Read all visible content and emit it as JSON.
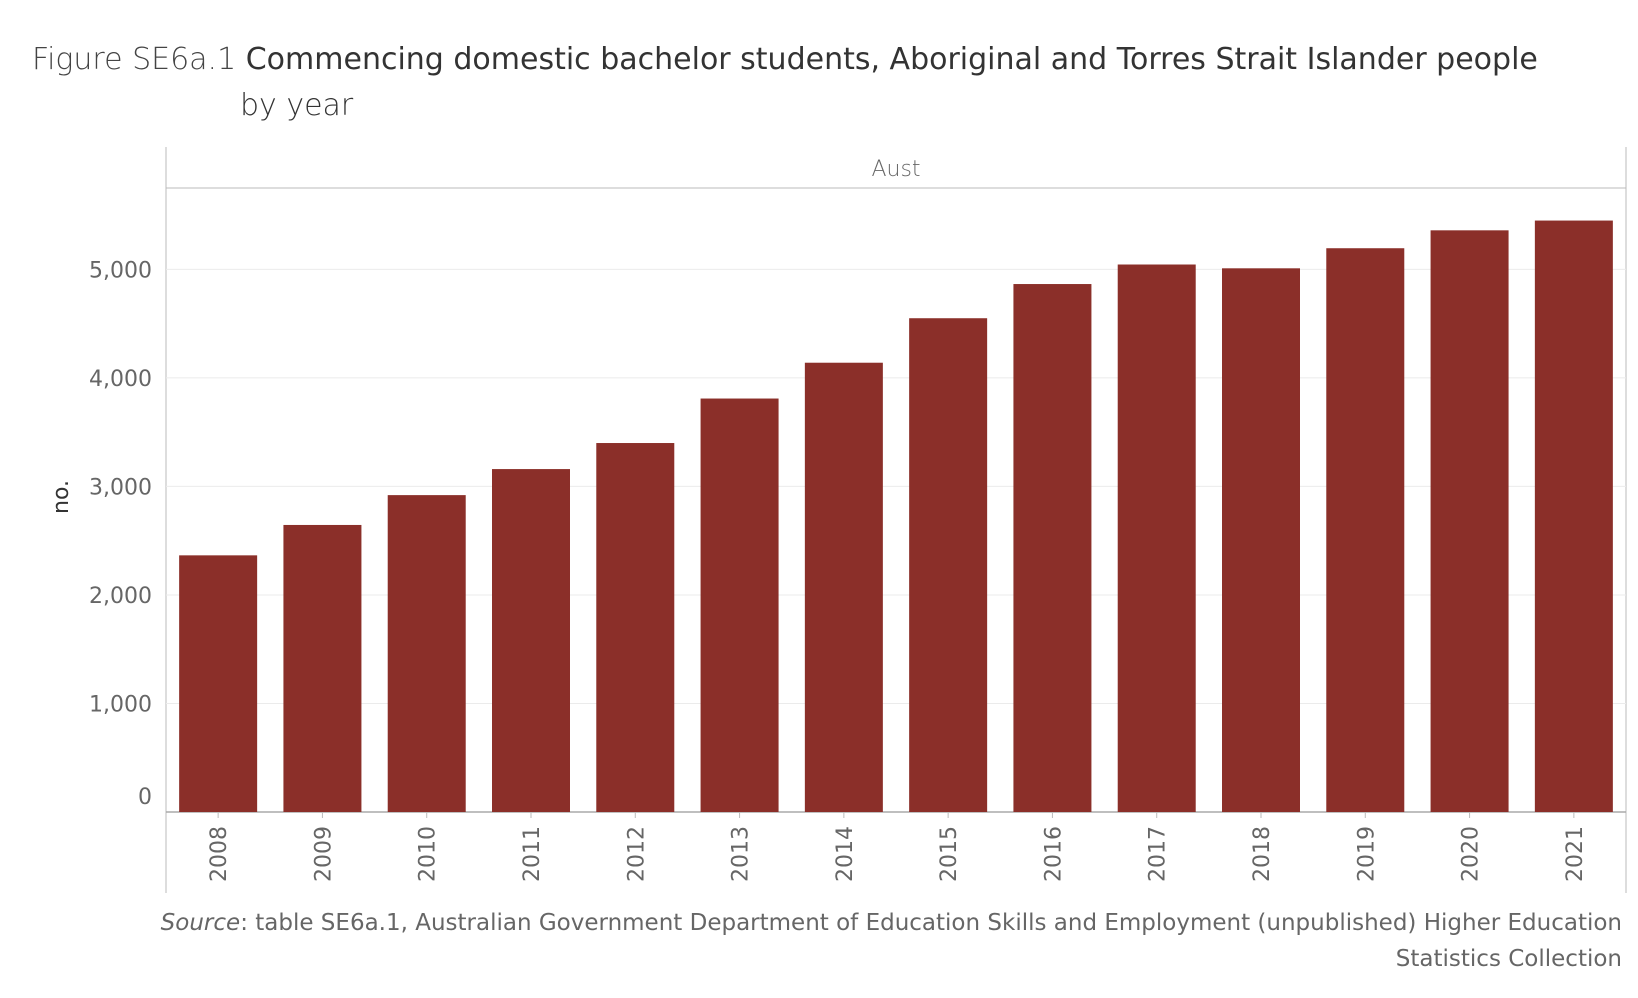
{
  "header": {
    "figure_prefix": "Figure SE6a.1",
    "title": "Commencing domestic bachelor students, Aboriginal and Torres Strait Islander people",
    "title_line2": "by year"
  },
  "chart_data": {
    "type": "bar",
    "panel_label": "Aust",
    "ylabel": "no.",
    "categories": [
      "2008",
      "2009",
      "2010",
      "2011",
      "2012",
      "2013",
      "2014",
      "2015",
      "2016",
      "2017",
      "2018",
      "2019",
      "2020",
      "2021"
    ],
    "values": [
      2365,
      2645,
      2920,
      3160,
      3400,
      3810,
      4140,
      4550,
      4865,
      5045,
      5010,
      5195,
      5360,
      5450
    ],
    "ylim": [
      0,
      5750
    ],
    "yticks": [
      0,
      1000,
      2000,
      3000,
      4000,
      5000
    ],
    "ytick_labels": [
      "0",
      "1,000",
      "2,000",
      "3,000",
      "4,000",
      "5,000"
    ],
    "bar_color": "#8b2f29",
    "grid": true
  },
  "source": {
    "label": "Source",
    "text": ": table SE6a.1, Australian Government Department of Education Skills and Employment (unpublished) Higher Education Statistics Collection"
  }
}
